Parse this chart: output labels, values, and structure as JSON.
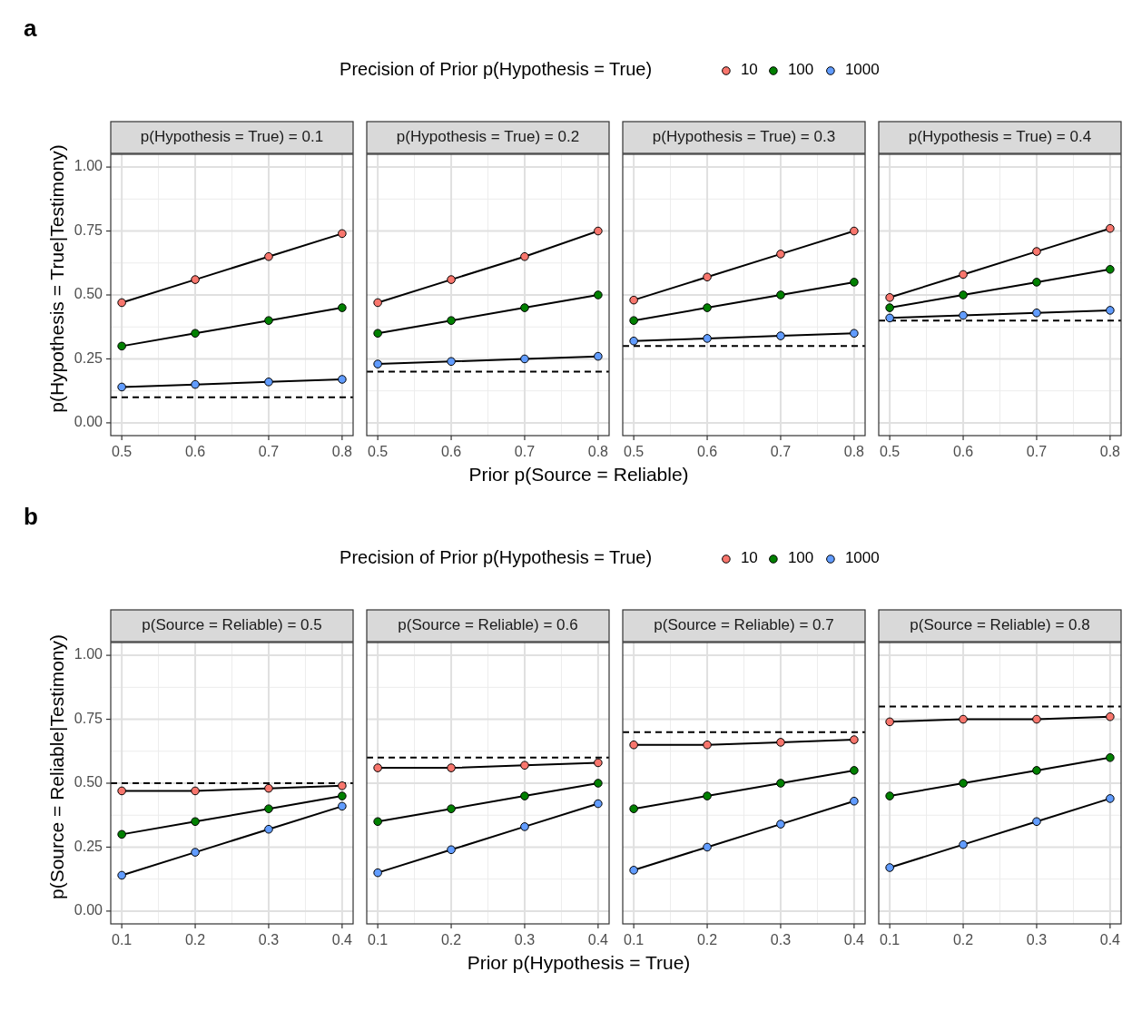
{
  "chart_data": [
    {
      "type": "line",
      "title": "p(Hypothesis = True) = 0.1",
      "annotations": [
        "a"
      ],
      "ylabel": "p(Hypothesis = True|Testimony)",
      "x": [
        0.5,
        0.6,
        0.7,
        0.8
      ],
      "xlim": [
        0.485,
        0.815
      ],
      "xticks": [
        0.5,
        0.6,
        0.7,
        0.8
      ],
      "ylim": [
        -0.05,
        1.05
      ],
      "yticks": [
        {
          "value": 0,
          "label": "0.00"
        },
        {
          "value": 0.25,
          "label": "0.25"
        },
        {
          "value": 0.5,
          "label": "0.50"
        },
        {
          "value": 0.75,
          "label": "0.75"
        },
        {
          "value": 1,
          "label": "1.00"
        }
      ],
      "grid": true,
      "marker": "circle",
      "line_style": "solid",
      "ref_lines": [
        {
          "axis": "y",
          "value": 0.1,
          "line_style": "dashed"
        }
      ],
      "series": [
        {
          "color": "#f8766d",
          "values": [
            0.47,
            0.56,
            0.65,
            0.74
          ]
        },
        {
          "color": "#008000",
          "values": [
            0.3,
            0.35,
            0.4,
            0.45
          ]
        },
        {
          "color": "#619cff",
          "values": [
            0.14,
            0.15,
            0.16,
            0.17
          ]
        }
      ]
    },
    {
      "type": "line",
      "title": "p(Hypothesis = True) = 0.2",
      "legend_title": "Precision of Prior p(Hypothesis = True)",
      "legend": "top",
      "xlabel": "Prior p(Source = Reliable)",
      "tick_labels": "x",
      "x": [
        0.5,
        0.6,
        0.7,
        0.8
      ],
      "xlim": [
        0.485,
        0.815
      ],
      "xticks": [
        0.5,
        0.6,
        0.7,
        0.8
      ],
      "ylim": [
        -0.05,
        1.05
      ],
      "yticks": [
        {
          "value": 0,
          "label": null
        },
        {
          "value": 0.25,
          "label": null
        },
        {
          "value": 0.5,
          "label": null
        },
        {
          "value": 0.75,
          "label": null
        },
        {
          "value": 1,
          "label": null
        }
      ],
      "grid": true,
      "marker": "circle",
      "line_style": "solid",
      "ref_lines": [
        {
          "axis": "y",
          "value": 0.2,
          "line_style": "dashed"
        }
      ],
      "series": [
        {
          "name": "10",
          "color": "#f8766d",
          "values": [
            0.47,
            0.56,
            0.65,
            0.75
          ]
        },
        {
          "name": "100",
          "color": "#008000",
          "values": [
            0.35,
            0.4,
            0.45,
            0.5
          ]
        },
        {
          "name": "1000",
          "color": "#619cff",
          "values": [
            0.23,
            0.24,
            0.25,
            0.26
          ]
        }
      ]
    },
    {
      "type": "line",
      "title": "p(Hypothesis = True) = 0.3",
      "tick_labels": "x",
      "x": [
        0.5,
        0.6,
        0.7,
        0.8
      ],
      "xlim": [
        0.485,
        0.815
      ],
      "xticks": [
        0.5,
        0.6,
        0.7,
        0.8
      ],
      "ylim": [
        -0.05,
        1.05
      ],
      "yticks": [
        {
          "value": 0,
          "label": null
        },
        {
          "value": 0.25,
          "label": null
        },
        {
          "value": 0.5,
          "label": null
        },
        {
          "value": 0.75,
          "label": null
        },
        {
          "value": 1,
          "label": null
        }
      ],
      "grid": true,
      "marker": "circle",
      "line_style": "solid",
      "ref_lines": [
        {
          "axis": "y",
          "value": 0.3,
          "line_style": "dashed"
        }
      ],
      "series": [
        {
          "color": "#f8766d",
          "values": [
            0.48,
            0.57,
            0.66,
            0.75
          ]
        },
        {
          "color": "#008000",
          "values": [
            0.4,
            0.45,
            0.5,
            0.55
          ]
        },
        {
          "color": "#619cff",
          "values": [
            0.32,
            0.33,
            0.34,
            0.35
          ]
        }
      ]
    },
    {
      "type": "line",
      "title": "p(Hypothesis = True) = 0.4",
      "tick_labels": "x",
      "x": [
        0.5,
        0.6,
        0.7,
        0.8
      ],
      "xlim": [
        0.485,
        0.815
      ],
      "xticks": [
        0.5,
        0.6,
        0.7,
        0.8
      ],
      "ylim": [
        -0.05,
        1.05
      ],
      "yticks": [
        {
          "value": 0,
          "label": null
        },
        {
          "value": 0.25,
          "label": null
        },
        {
          "value": 0.5,
          "label": null
        },
        {
          "value": 0.75,
          "label": null
        },
        {
          "value": 1,
          "label": null
        }
      ],
      "grid": true,
      "marker": "circle",
      "line_style": "solid",
      "ref_lines": [
        {
          "axis": "y",
          "value": 0.4,
          "line_style": "dashed"
        }
      ],
      "series": [
        {
          "color": "#f8766d",
          "values": [
            0.49,
            0.58,
            0.67,
            0.76
          ]
        },
        {
          "color": "#008000",
          "values": [
            0.45,
            0.5,
            0.55,
            0.6
          ]
        },
        {
          "color": "#619cff",
          "values": [
            0.41,
            0.42,
            0.43,
            0.44
          ]
        }
      ]
    },
    {
      "type": "line",
      "title": "p(Source = Reliable) = 0.5",
      "annotations": [
        "b"
      ],
      "ylabel": "p(Source = Reliable|Testimony)",
      "x": [
        0.1,
        0.2,
        0.3,
        0.4
      ],
      "xlim": [
        0.085,
        0.415
      ],
      "xticks": [
        0.1,
        0.2,
        0.3,
        0.4
      ],
      "ylim": [
        -0.05,
        1.05
      ],
      "yticks": [
        {
          "value": 0,
          "label": "0.00"
        },
        {
          "value": 0.25,
          "label": "0.25"
        },
        {
          "value": 0.5,
          "label": "0.50"
        },
        {
          "value": 0.75,
          "label": "0.75"
        },
        {
          "value": 1,
          "label": "1.00"
        }
      ],
      "grid": true,
      "marker": "circle",
      "line_style": "solid",
      "ref_lines": [
        {
          "axis": "y",
          "value": 0.5,
          "line_style": "dashed"
        }
      ],
      "series": [
        {
          "color": "#f8766d",
          "values": [
            0.47,
            0.47,
            0.48,
            0.49
          ]
        },
        {
          "color": "#008000",
          "values": [
            0.3,
            0.35,
            0.4,
            0.45
          ]
        },
        {
          "color": "#619cff",
          "values": [
            0.14,
            0.23,
            0.32,
            0.41
          ]
        }
      ]
    },
    {
      "type": "line",
      "title": "p(Source = Reliable) = 0.6",
      "legend_title": "Precision of Prior p(Hypothesis = True)",
      "legend": "top",
      "xlabel": "Prior p(Hypothesis = True)",
      "tick_labels": "x",
      "x": [
        0.1,
        0.2,
        0.3,
        0.4
      ],
      "xlim": [
        0.085,
        0.415
      ],
      "xticks": [
        0.1,
        0.2,
        0.3,
        0.4
      ],
      "ylim": [
        -0.05,
        1.05
      ],
      "yticks": [
        {
          "value": 0,
          "label": null
        },
        {
          "value": 0.25,
          "label": null
        },
        {
          "value": 0.5,
          "label": null
        },
        {
          "value": 0.75,
          "label": null
        },
        {
          "value": 1,
          "label": null
        }
      ],
      "grid": true,
      "marker": "circle",
      "line_style": "solid",
      "ref_lines": [
        {
          "axis": "y",
          "value": 0.6,
          "line_style": "dashed"
        }
      ],
      "series": [
        {
          "name": "10",
          "color": "#f8766d",
          "values": [
            0.56,
            0.56,
            0.57,
            0.58
          ]
        },
        {
          "name": "100",
          "color": "#008000",
          "values": [
            0.35,
            0.4,
            0.45,
            0.5
          ]
        },
        {
          "name": "1000",
          "color": "#619cff",
          "values": [
            0.15,
            0.24,
            0.33,
            0.42
          ]
        }
      ]
    },
    {
      "type": "line",
      "title": "p(Source = Reliable) = 0.7",
      "tick_labels": "x",
      "x": [
        0.1,
        0.2,
        0.3,
        0.4
      ],
      "xlim": [
        0.085,
        0.415
      ],
      "xticks": [
        0.1,
        0.2,
        0.3,
        0.4
      ],
      "ylim": [
        -0.05,
        1.05
      ],
      "yticks": [
        {
          "value": 0,
          "label": null
        },
        {
          "value": 0.25,
          "label": null
        },
        {
          "value": 0.5,
          "label": null
        },
        {
          "value": 0.75,
          "label": null
        },
        {
          "value": 1,
          "label": null
        }
      ],
      "grid": true,
      "marker": "circle",
      "line_style": "solid",
      "ref_lines": [
        {
          "axis": "y",
          "value": 0.7,
          "line_style": "dashed"
        }
      ],
      "series": [
        {
          "color": "#f8766d",
          "values": [
            0.65,
            0.65,
            0.66,
            0.67
          ]
        },
        {
          "color": "#008000",
          "values": [
            0.4,
            0.45,
            0.5,
            0.55
          ]
        },
        {
          "color": "#619cff",
          "values": [
            0.16,
            0.25,
            0.34,
            0.43
          ]
        }
      ]
    },
    {
      "type": "line",
      "title": "p(Source = Reliable) = 0.8",
      "tick_labels": "x",
      "x": [
        0.1,
        0.2,
        0.3,
        0.4
      ],
      "xlim": [
        0.085,
        0.415
      ],
      "xticks": [
        0.1,
        0.2,
        0.3,
        0.4
      ],
      "ylim": [
        -0.05,
        1.05
      ],
      "yticks": [
        {
          "value": 0,
          "label": null
        },
        {
          "value": 0.25,
          "label": null
        },
        {
          "value": 0.5,
          "label": null
        },
        {
          "value": 0.75,
          "label": null
        },
        {
          "value": 1,
          "label": null
        }
      ],
      "grid": true,
      "marker": "circle",
      "line_style": "solid",
      "ref_lines": [
        {
          "axis": "y",
          "value": 0.8,
          "line_style": "dashed"
        }
      ],
      "series": [
        {
          "color": "#f8766d",
          "values": [
            0.74,
            0.75,
            0.75,
            0.76
          ]
        },
        {
          "color": "#008000",
          "values": [
            0.45,
            0.5,
            0.55,
            0.6
          ]
        },
        {
          "color": "#619cff",
          "values": [
            0.17,
            0.26,
            0.35,
            0.44
          ]
        }
      ]
    }
  ]
}
